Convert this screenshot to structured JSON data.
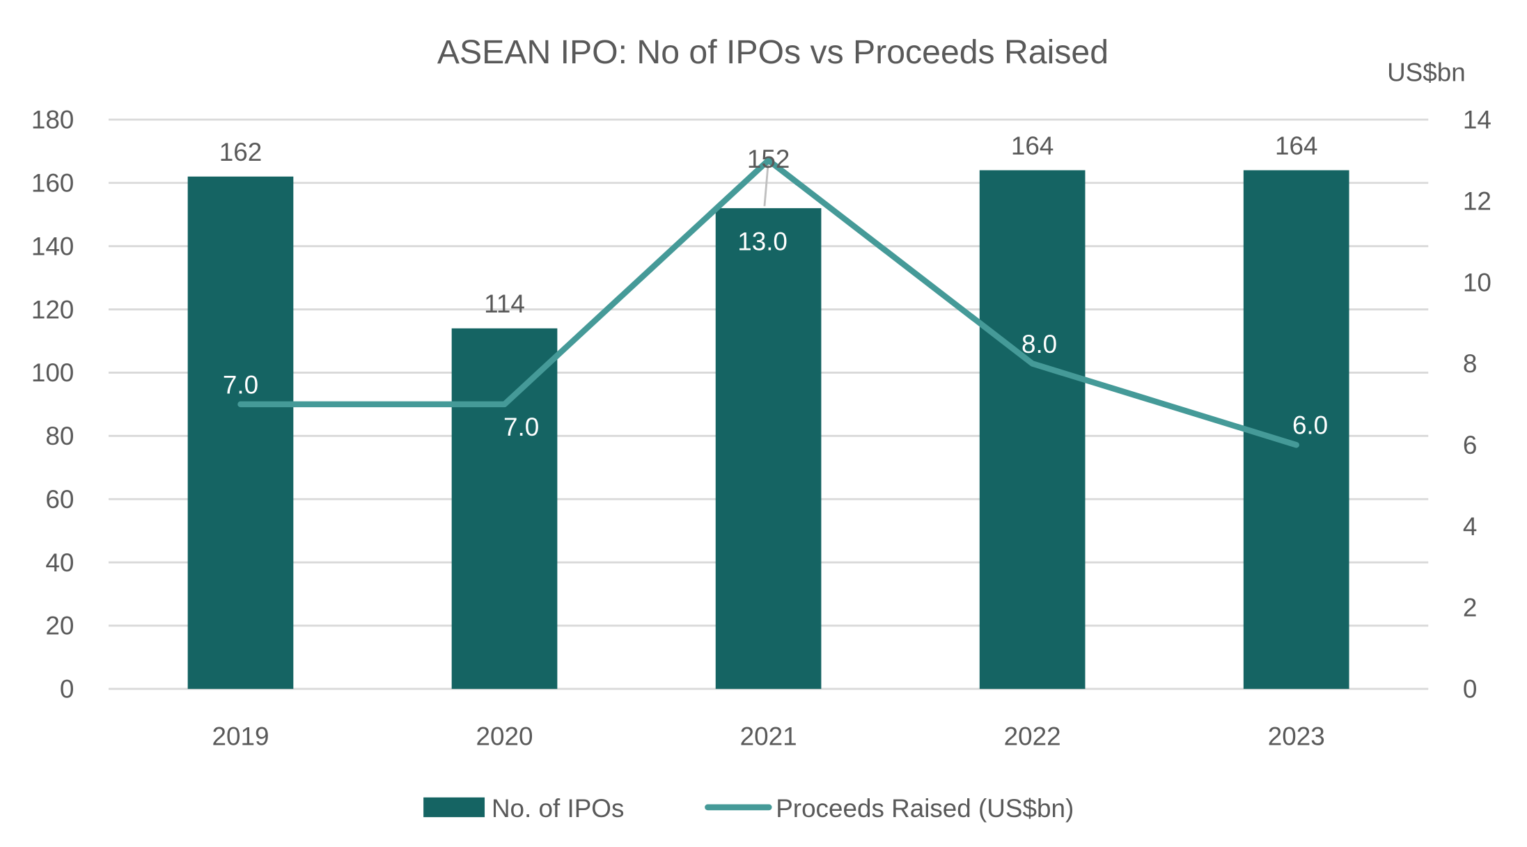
{
  "chart_data": {
    "type": "bar+line",
    "title": "ASEAN IPO: No of IPOs vs Proceeds Raised",
    "categories": [
      "2019",
      "2020",
      "2021",
      "2022",
      "2023"
    ],
    "series": [
      {
        "name": "No. of IPOs",
        "type": "bar",
        "axis": "left",
        "values": [
          162,
          114,
          152,
          164,
          164
        ],
        "labels": [
          "162",
          "114",
          "152",
          "164",
          "164"
        ],
        "color": "#156463"
      },
      {
        "name": "Proceeds Raised (US$bn)",
        "type": "line",
        "axis": "right",
        "values": [
          7.0,
          7.0,
          13.0,
          8.0,
          6.0
        ],
        "labels": [
          "7.0",
          "7.0",
          "13.0",
          "8.0",
          "6.0"
        ],
        "color": "#459a98"
      }
    ],
    "y_left": {
      "range": [
        0,
        180
      ],
      "ticks": [
        "0",
        "20",
        "40",
        "60",
        "80",
        "100",
        "120",
        "140",
        "160",
        "180"
      ]
    },
    "y_right": {
      "label": "US$bn",
      "range": [
        0,
        14
      ],
      "ticks": [
        "0",
        "2",
        "4",
        "6",
        "8",
        "10",
        "12",
        "14"
      ]
    },
    "grid": true,
    "legend": "bottom"
  }
}
